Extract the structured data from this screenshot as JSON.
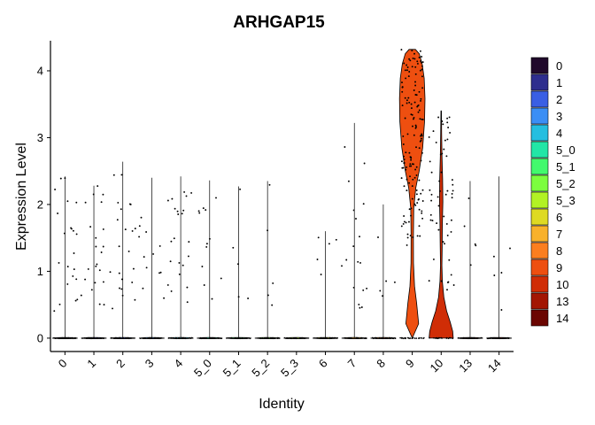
{
  "chart_data": {
    "type": "violin",
    "title": "ARHGAP15",
    "xlabel": "Identity",
    "ylabel": "Expression Level",
    "ylim": [
      0,
      4.3
    ],
    "yticks": [
      0,
      1,
      2,
      3,
      4
    ],
    "categories": [
      "0",
      "1",
      "2",
      "3",
      "4",
      "5_0",
      "5_1",
      "5_2",
      "5_3",
      "6",
      "7",
      "8",
      "9",
      "10",
      "13",
      "14"
    ],
    "colors": [
      "#20092B",
      "#2E2E8E",
      "#3A5FE4",
      "#3B8EF5",
      "#24BEE0",
      "#22E6A6",
      "#42F96D",
      "#7CFE3E",
      "#B2F224",
      "#DEDA23",
      "#F8B12B",
      "#FB7E1F",
      "#EE4F10",
      "#D02D06",
      "#A31603",
      "#6B0602"
    ],
    "series": [
      {
        "name": "0",
        "max": 2.42
      },
      {
        "name": "1",
        "max": 2.28
      },
      {
        "name": "2",
        "max": 2.64
      },
      {
        "name": "3",
        "max": 2.4
      },
      {
        "name": "4",
        "max": 2.42
      },
      {
        "name": "5_0",
        "max": 2.36
      },
      {
        "name": "5_1",
        "max": 2.27
      },
      {
        "name": "5_2",
        "max": 2.35
      },
      {
        "name": "5_3",
        "max": 0
      },
      {
        "name": "6",
        "max": 1.6
      },
      {
        "name": "7",
        "max": 3.22
      },
      {
        "name": "8",
        "max": 2.0
      },
      {
        "name": "9",
        "max": 4.32
      },
      {
        "name": "10",
        "max": 3.4
      },
      {
        "name": "13",
        "max": 2.35
      },
      {
        "name": "14",
        "max": 2.42
      }
    ],
    "legend": [
      "0",
      "1",
      "2",
      "3",
      "4",
      "5_0",
      "5_1",
      "5_2",
      "5_3",
      "6",
      "7",
      "8",
      "9",
      "10",
      "13",
      "14"
    ]
  }
}
